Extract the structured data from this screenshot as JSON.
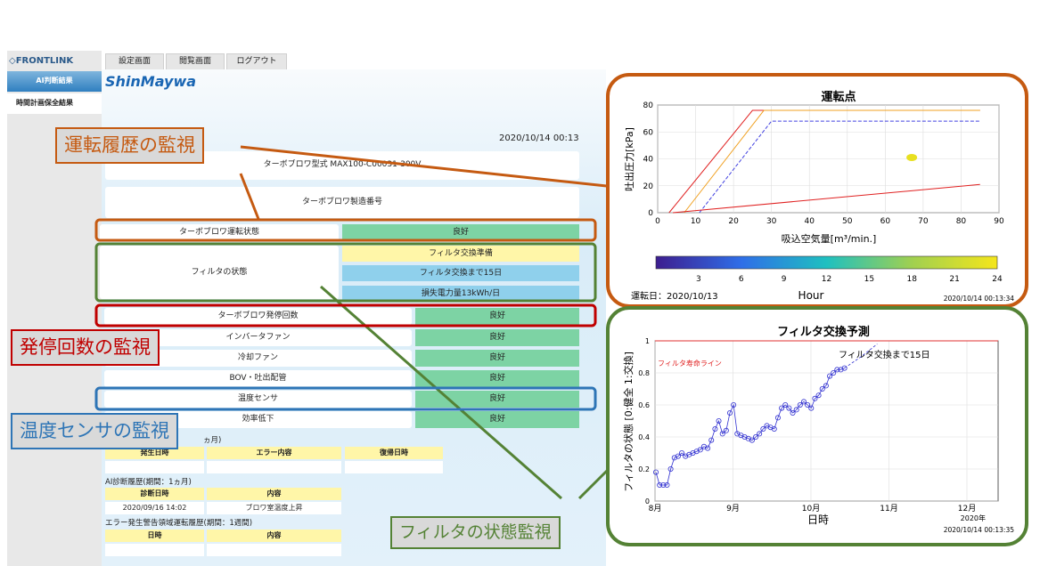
{
  "app": {
    "logo": "FRONTLINK",
    "brand": "ShinMaywa"
  },
  "sidebar": {
    "active": "AI判断結果",
    "item": "時間計画保全結果"
  },
  "tabs": [
    "設定画面",
    "閲覧画面",
    "ログアウト"
  ],
  "timestamp": "2020/10/14 00:13",
  "model": "ターボブロワ型式 MAX100-C00031-300V",
  "serial": "ターボブロワ製造番号",
  "rows": [
    {
      "label": "ターボブロワ運転状態",
      "status": "良好"
    },
    {
      "label": "フィルタの状態",
      "statuses": [
        "フィルタ交換準備",
        "フィルタ交換まで15日",
        "損失電力量13kWh/日"
      ]
    },
    {
      "label": "ターボブロワ発停回数",
      "status": "良好"
    },
    {
      "label": "インバータファン",
      "status": "良好"
    },
    {
      "label": "冷却ファン",
      "status": "良好"
    },
    {
      "label": "BOV・吐出配管",
      "status": "良好"
    },
    {
      "label": "温度センサ",
      "status": "良好"
    },
    {
      "label": "効率低下",
      "status": "良好"
    }
  ],
  "error_history": {
    "title": "ヵ月)",
    "cols": [
      "発生日時",
      "エラー内容",
      "復帰日時"
    ]
  },
  "ai_history": {
    "title": "AI診断履歴(期間：1ヵ月)",
    "cols": [
      "診断日時",
      "内容"
    ],
    "row": [
      "2020/09/16 14:02",
      "ブロワ室温度上昇"
    ]
  },
  "warn_history": {
    "title": "エラー発生警告領域運転履歴(期間：1週間)",
    "cols": [
      "日時",
      "内容"
    ]
  },
  "callouts": {
    "op": "運転履歴の監視",
    "start": "発停回数の監視",
    "temp": "温度センサの監視",
    "filter": "フィルタの状態監視"
  },
  "chart_data": [
    {
      "type": "line",
      "title": "運転点",
      "xlabel": "吸込空気量[m³/min.]",
      "ylabel": "吐出圧力[kPa]",
      "xlim": [
        0,
        90
      ],
      "ylim": [
        0,
        80
      ],
      "xticks": [
        0,
        10,
        20,
        30,
        40,
        50,
        60,
        70,
        80,
        90
      ],
      "yticks": [
        0,
        20,
        40,
        60,
        80
      ],
      "series": [
        {
          "color": "#e02020",
          "points": [
            [
              3,
              0
            ],
            [
              25,
              76
            ],
            [
              85,
              76
            ]
          ]
        },
        {
          "color": "#f0a020",
          "points": [
            [
              7,
              0
            ],
            [
              28,
              76
            ],
            [
              85,
              76
            ]
          ]
        },
        {
          "color": "#4040e0",
          "points": [
            [
              11,
              0
            ],
            [
              30,
              68
            ],
            [
              85,
              68
            ]
          ]
        },
        {
          "color": "#e02020",
          "points": [
            [
              4,
              0
            ],
            [
              85,
              21
            ]
          ]
        }
      ],
      "point": {
        "x": 67,
        "y": 41,
        "color": "#e8e020"
      },
      "colorbar": {
        "label": "Hour",
        "ticks": [
          3,
          6,
          9,
          12,
          15,
          18,
          21,
          24
        ]
      },
      "footer_left": "運転日：2020/10/13",
      "footer_right": "2020/10/14 00:13:34"
    },
    {
      "type": "scatter",
      "title": "フィルタ交換予測",
      "xlabel": "日時",
      "ylabel": "フィルタの状態 [0:健全  1:交換]",
      "ylim": [
        0,
        1
      ],
      "yticks": [
        0,
        0.2,
        0.4,
        0.6,
        0.8,
        1
      ],
      "xticks": [
        "8月",
        "9月",
        "10月",
        "11月",
        "12月"
      ],
      "xnote": "2020年",
      "threshold": {
        "y": 1,
        "label": "フィルタ寿命ライン"
      },
      "annotation": "フィルタ交換まで15日",
      "values": [
        0.18,
        0.1,
        0.1,
        0.1,
        0.2,
        0.27,
        0.28,
        0.3,
        0.28,
        0.29,
        0.3,
        0.31,
        0.32,
        0.34,
        0.33,
        0.38,
        0.45,
        0.5,
        0.42,
        0.44,
        0.55,
        0.6,
        0.42,
        0.41,
        0.4,
        0.39,
        0.38,
        0.4,
        0.42,
        0.45,
        0.47,
        0.46,
        0.45,
        0.52,
        0.58,
        0.6,
        0.58,
        0.55,
        0.57,
        0.6,
        0.62,
        0.6,
        0.58,
        0.64,
        0.66,
        0.7,
        0.72,
        0.78,
        0.8,
        0.82,
        0.82,
        0.83
      ],
      "forecast": [
        0.83,
        0.9,
        0.98
      ],
      "footer_right": "2020/10/14 00:13:35"
    }
  ]
}
